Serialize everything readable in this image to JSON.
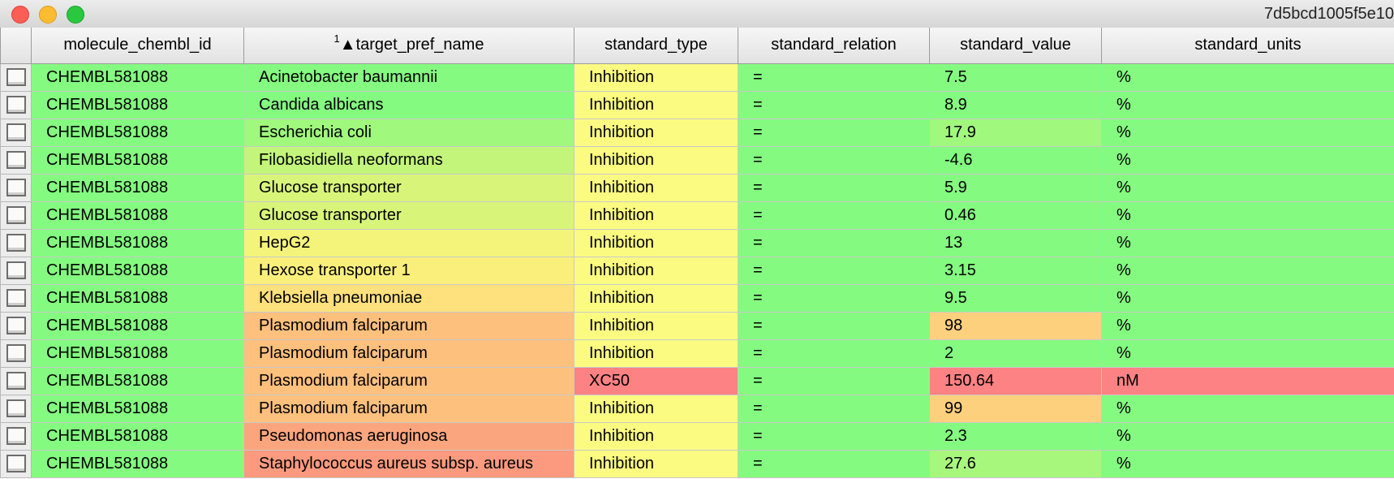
{
  "window": {
    "title": "7d5bcd1005f5e10"
  },
  "table": {
    "headers": {
      "molecule": "molecule_chembl_id",
      "sort_order": "1",
      "sort_arrow": "▲",
      "target": "target_pref_name",
      "type": "standard_type",
      "relation": "standard_relation",
      "value": "standard_value",
      "units": "standard_units"
    },
    "rows": [
      {
        "molecule": "CHEMBL581088",
        "target": "Acinetobacter baumannii",
        "type": "Inhibition",
        "relation": "=",
        "value": "7.5",
        "units": "%"
      },
      {
        "molecule": "CHEMBL581088",
        "target": "Candida albicans",
        "type": "Inhibition",
        "relation": "=",
        "value": "8.9",
        "units": "%"
      },
      {
        "molecule": "CHEMBL581088",
        "target": "Escherichia coli",
        "type": "Inhibition",
        "relation": "=",
        "value": "17.9",
        "units": "%"
      },
      {
        "molecule": "CHEMBL581088",
        "target": "Filobasidiella neoformans",
        "type": "Inhibition",
        "relation": "=",
        "value": "-4.6",
        "units": "%"
      },
      {
        "molecule": "CHEMBL581088",
        "target": "Glucose transporter",
        "type": "Inhibition",
        "relation": "=",
        "value": "5.9",
        "units": "%"
      },
      {
        "molecule": "CHEMBL581088",
        "target": "Glucose transporter",
        "type": "Inhibition",
        "relation": "=",
        "value": "0.46",
        "units": "%"
      },
      {
        "molecule": "CHEMBL581088",
        "target": "HepG2",
        "type": "Inhibition",
        "relation": "=",
        "value": "13",
        "units": "%"
      },
      {
        "molecule": "CHEMBL581088",
        "target": "Hexose transporter 1",
        "type": "Inhibition",
        "relation": "=",
        "value": "3.15",
        "units": "%"
      },
      {
        "molecule": "CHEMBL581088",
        "target": "Klebsiella pneumoniae",
        "type": "Inhibition",
        "relation": "=",
        "value": "9.5",
        "units": "%"
      },
      {
        "molecule": "CHEMBL581088",
        "target": "Plasmodium falciparum",
        "type": "Inhibition",
        "relation": "=",
        "value": "98",
        "units": "%"
      },
      {
        "molecule": "CHEMBL581088",
        "target": "Plasmodium falciparum",
        "type": "Inhibition",
        "relation": "=",
        "value": "2",
        "units": "%"
      },
      {
        "molecule": "CHEMBL581088",
        "target": "Plasmodium falciparum",
        "type": "XC50",
        "relation": "=",
        "value": "150.64",
        "units": "nM"
      },
      {
        "molecule": "CHEMBL581088",
        "target": "Plasmodium falciparum",
        "type": "Inhibition",
        "relation": "=",
        "value": "99",
        "units": "%"
      },
      {
        "molecule": "CHEMBL581088",
        "target": "Pseudomonas aeruginosa",
        "type": "Inhibition",
        "relation": "=",
        "value": "2.3",
        "units": "%"
      },
      {
        "molecule": "CHEMBL581088",
        "target": "Staphylococcus aureus subsp. aureus",
        "type": "Inhibition",
        "relation": "=",
        "value": "27.6",
        "units": "%"
      }
    ]
  }
}
